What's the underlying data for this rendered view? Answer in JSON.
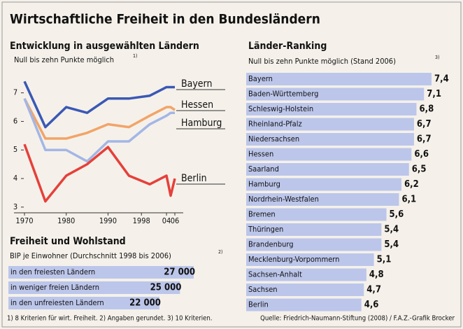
{
  "title": "Wirtschaftliche Freiheit in den Bundesländern",
  "footnote": "1) 8 Kriterien für wirt. Freiheit. 2) Angaben gerundet. 3) 10 Kriterien.",
  "source": "Quelle: Friedrich-Naumann-Stiftung (2008) / F.A.Z.-Grafik Brocker",
  "chart_data": [
    {
      "type": "line",
      "title": "Entwicklung in ausgewählten Ländern",
      "subtitle": "Null bis zehn Punkte möglich",
      "subtitle_note": "1)",
      "x": [
        1970,
        1975,
        1980,
        1985,
        1990,
        1995,
        2000,
        2004,
        2005,
        2006
      ],
      "xlim": [
        1970,
        2006
      ],
      "xticks": [
        1970,
        1980,
        1990,
        1998,
        {
          "value": 2004,
          "label": "04"
        },
        {
          "value": 2006,
          "label": "06"
        }
      ],
      "ylim": [
        2.8,
        7.8
      ],
      "yticks": [
        3,
        4,
        5,
        6,
        7
      ],
      "series": [
        {
          "name": "Bayern",
          "color": "#3a58b5",
          "values": [
            7.4,
            5.8,
            6.5,
            6.3,
            6.8,
            6.8,
            6.9,
            7.2,
            7.2,
            7.2
          ]
        },
        {
          "name": "Hessen",
          "color": "#f2a468",
          "values": [
            6.8,
            5.4,
            5.4,
            5.6,
            5.9,
            5.8,
            6.2,
            6.5,
            6.5,
            6.4
          ]
        },
        {
          "name": "Hamburg",
          "color": "#a3b6e6",
          "values": [
            6.8,
            5.0,
            5.0,
            4.6,
            5.3,
            5.3,
            5.9,
            6.2,
            6.3,
            6.3
          ]
        },
        {
          "name": "Berlin",
          "color": "#e6403a",
          "values": [
            5.2,
            3.2,
            4.1,
            4.5,
            5.1,
            4.1,
            3.8,
            4.1,
            3.4,
            4.0
          ]
        }
      ]
    },
    {
      "type": "hbar",
      "title": "Freiheit und Wohlstand",
      "subtitle": "BIP je Einwohner (Durchschnitt 1998 bis 2006)",
      "subtitle_note": "2)",
      "categories": [
        "in den freiesten Ländern",
        "in weniger freien Ländern",
        "in den unfreiesten Ländern"
      ],
      "values": [
        27000,
        25000,
        22000
      ],
      "value_labels": [
        "27 000",
        "25 000",
        "22 000"
      ],
      "color": "#bcc6ea"
    },
    {
      "type": "hbar",
      "title": "Länder-Ranking",
      "subtitle": "Null bis zehn Punkte möglich (Stand 2006)",
      "subtitle_note": "3)",
      "categories": [
        "Bayern",
        "Baden-Württemberg",
        "Schleswig-Holstein",
        "Rheinland-Pfalz",
        "Niedersachsen",
        "Hessen",
        "Saarland",
        "Hamburg",
        "Nordrhein-Westfalen",
        "Bremen",
        "Thüringen",
        "Brandenburg",
        "Mecklenburg-Vorpommern",
        "Sachsen-Anhalt",
        "Sachsen",
        "Berlin"
      ],
      "values": [
        7.4,
        7.1,
        6.8,
        6.7,
        6.7,
        6.6,
        6.5,
        6.2,
        6.1,
        5.6,
        5.4,
        5.4,
        5.1,
        4.8,
        4.7,
        4.6
      ],
      "value_labels": [
        "7,4",
        "7,1",
        "6,8",
        "6,7",
        "6,7",
        "6,6",
        "6,5",
        "6,2",
        "6,1",
        "5,6",
        "5,4",
        "5,4",
        "5,1",
        "4,8",
        "4,7",
        "4,6"
      ],
      "color": "#bcc6ea"
    }
  ]
}
